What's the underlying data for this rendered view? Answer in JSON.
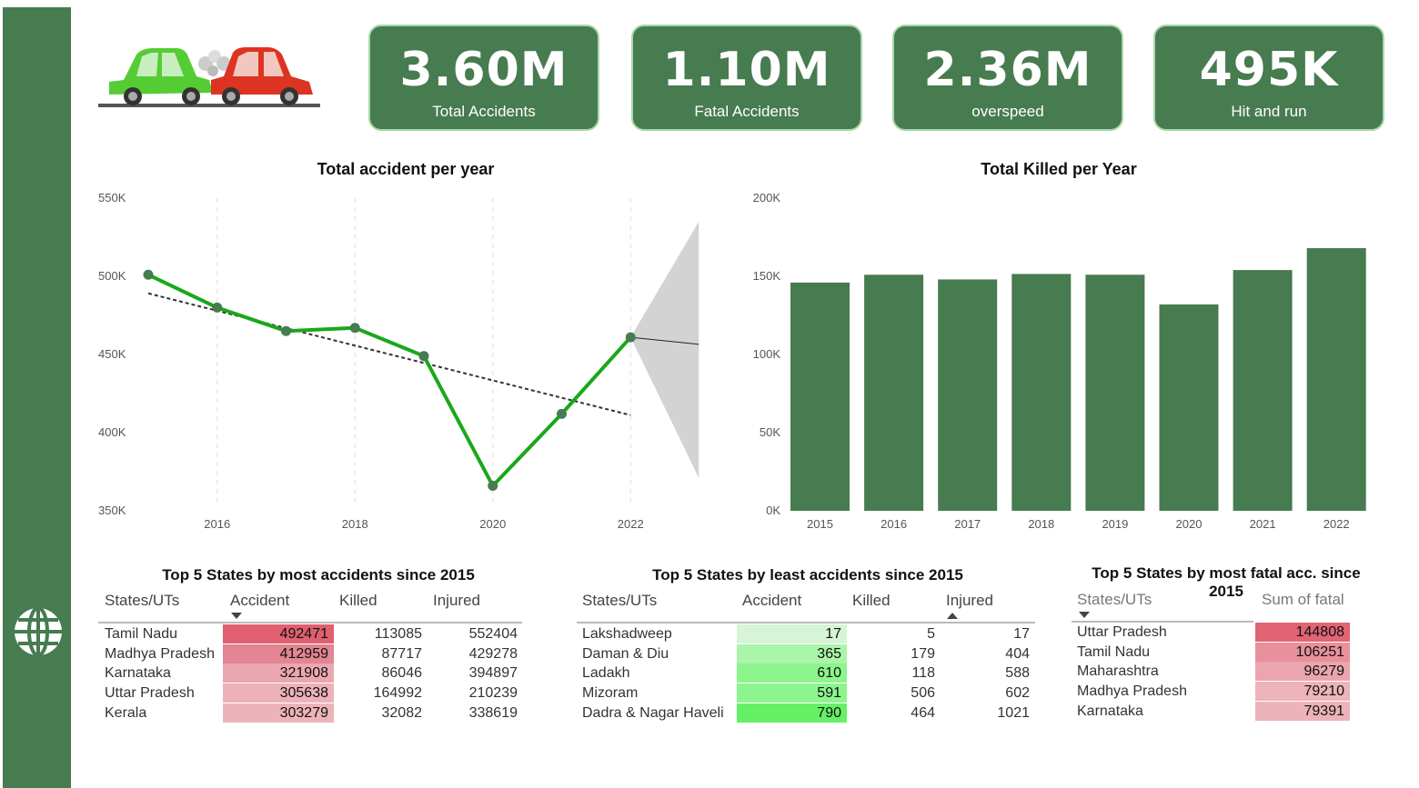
{
  "kpis": [
    {
      "value": "3.60M",
      "label": "Total Accidents"
    },
    {
      "value": "1.10M",
      "label": "Fatal Accidents"
    },
    {
      "value": "2.36M",
      "label": "overspeed"
    },
    {
      "value": "495K",
      "label": "Hit and run"
    }
  ],
  "colors": {
    "sidebar": "#477b50",
    "kpi_bg": "#477b50",
    "line": "#1aa81a",
    "bar": "#477b50",
    "heat_red": "#e06070",
    "heat_green": "#66f066"
  },
  "chart_data": [
    {
      "type": "line",
      "title": "Total accident per year",
      "x": [
        2015,
        2016,
        2017,
        2018,
        2019,
        2020,
        2021,
        2022
      ],
      "values": [
        501000,
        480000,
        465000,
        467000,
        449000,
        366000,
        412000,
        461000
      ],
      "ylim": [
        350000,
        550000
      ],
      "yticks": [
        "550K",
        "500K",
        "450K",
        "400K",
        "350K"
      ],
      "xticks": [
        "2016",
        "2018",
        "2020",
        "2022"
      ],
      "trendline": true,
      "forecast": true
    },
    {
      "type": "bar",
      "title": "Total Killed per Year",
      "categories": [
        "2015",
        "2016",
        "2017",
        "2018",
        "2019",
        "2020",
        "2021",
        "2022"
      ],
      "values": [
        146000,
        151000,
        148000,
        151500,
        151000,
        132000,
        154000,
        168000
      ],
      "ylim": [
        0,
        200000
      ],
      "yticks": [
        "200K",
        "150K",
        "100K",
        "50K",
        "0K"
      ]
    }
  ],
  "tables": [
    {
      "title": "Top 5 States by most accidents since 2015",
      "headers": [
        "States/UTs",
        "Accident",
        "Killed",
        "Injured"
      ],
      "rows": [
        [
          "Tamil Nadu",
          "492471",
          "113085",
          "552404"
        ],
        [
          "Madhya Pradesh",
          "412959",
          "87717",
          "429278"
        ],
        [
          "Karnataka",
          "321908",
          "86046",
          "394897"
        ],
        [
          "Uttar Pradesh",
          "305638",
          "164992",
          "210239"
        ],
        [
          "Kerala",
          "303279",
          "32082",
          "338619"
        ]
      ]
    },
    {
      "title": "Top 5 States by least accidents since 2015",
      "headers": [
        "States/UTs",
        "Accident",
        "Killed",
        "Injured"
      ],
      "rows": [
        [
          "Lakshadweep",
          "17",
          "5",
          "17"
        ],
        [
          "Daman & Diu",
          "365",
          "179",
          "404"
        ],
        [
          "Ladakh",
          "610",
          "118",
          "588"
        ],
        [
          "Mizoram",
          "591",
          "506",
          "602"
        ],
        [
          "Dadra & Nagar Haveli",
          "790",
          "464",
          "1021"
        ]
      ]
    },
    {
      "title": "Top 5 States by most fatal acc. since 2015",
      "headers": [
        "States/UTs",
        "Sum of fatal"
      ],
      "rows": [
        [
          "Uttar Pradesh",
          "144808"
        ],
        [
          "Tamil Nadu",
          "106251"
        ],
        [
          "Maharashtra",
          "96279"
        ],
        [
          "Madhya Pradesh",
          "79210"
        ],
        [
          "Karnataka",
          "79391"
        ]
      ]
    }
  ]
}
